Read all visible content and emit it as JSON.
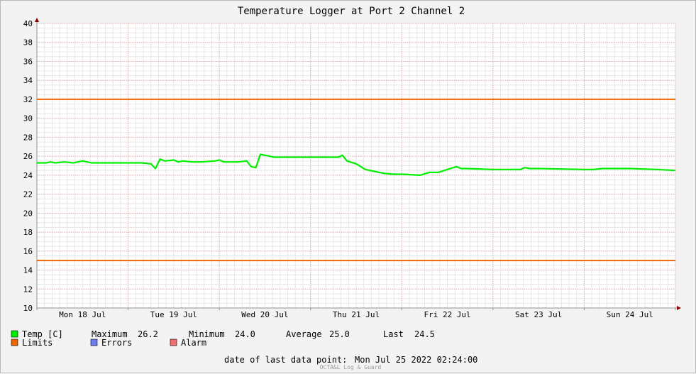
{
  "chart_data": {
    "type": "line",
    "title": "Temperature Logger at Port 2 Channel 2",
    "xlabel": "",
    "ylabel": "",
    "ylim": [
      10,
      40
    ],
    "xlim": [
      0,
      7
    ],
    "y_ticks": [
      10,
      12,
      14,
      16,
      18,
      20,
      22,
      24,
      26,
      28,
      30,
      32,
      34,
      36,
      38,
      40
    ],
    "x_tick_labels": [
      "Mon 18 Jul",
      "Tue 19 Jul",
      "Wed 20 Jul",
      "Thu 21 Jul",
      "Fri 22 Jul",
      "Sat 23 Jul",
      "Sun 24 Jul"
    ],
    "grid": true,
    "x_unit": "days from start of Mon 18 Jul",
    "series": [
      {
        "name": "Temp [C]",
        "color": "#00ee00",
        "x": [
          0,
          0.1,
          0.15,
          0.2,
          0.3,
          0.4,
          0.5,
          0.55,
          0.6,
          0.8,
          1.0,
          1.15,
          1.25,
          1.3,
          1.35,
          1.4,
          1.5,
          1.55,
          1.6,
          1.7,
          1.8,
          1.95,
          2.0,
          2.05,
          2.2,
          2.3,
          2.35,
          2.4,
          2.45,
          2.5,
          2.55,
          2.6,
          3.3,
          3.35,
          3.4,
          3.5,
          3.6,
          3.7,
          3.8,
          3.9,
          4.0,
          4.2,
          4.3,
          4.4,
          4.5,
          4.6,
          4.65,
          4.7,
          5.0,
          5.3,
          5.35,
          5.4,
          5.5,
          6.0,
          6.1,
          6.2,
          6.5,
          6.8,
          7.0
        ],
        "values": [
          25.3,
          25.3,
          25.4,
          25.3,
          25.4,
          25.3,
          25.5,
          25.4,
          25.3,
          25.3,
          25.3,
          25.3,
          25.2,
          24.7,
          25.7,
          25.5,
          25.6,
          25.4,
          25.5,
          25.4,
          25.4,
          25.5,
          25.6,
          25.4,
          25.4,
          25.5,
          24.9,
          24.8,
          26.2,
          26.1,
          26.0,
          25.9,
          25.9,
          26.1,
          25.5,
          25.2,
          24.6,
          24.4,
          24.2,
          24.1,
          24.1,
          24.0,
          24.3,
          24.3,
          24.6,
          24.9,
          24.7,
          24.7,
          24.6,
          24.6,
          24.8,
          24.7,
          24.7,
          24.6,
          24.6,
          24.7,
          24.7,
          24.6,
          24.5
        ]
      },
      {
        "name": "Limits",
        "color": "#ee6600",
        "lines": [
          32,
          15
        ]
      },
      {
        "name": "Errors",
        "color": "#6b7cf0"
      },
      {
        "name": "Alarm",
        "color": "#f07070"
      }
    ],
    "stats": {
      "maximum_label": "Maximum",
      "maximum": "26.2",
      "minimum_label": "Minimum",
      "minimum": "24.0",
      "average_label": "Average",
      "average": "25.0",
      "last_label": "Last",
      "last": "24.5"
    },
    "footer": {
      "label": "date of last data point:",
      "value": "Mon Jul 25 2022 02:24:00"
    },
    "credit": "OCTA&L Log & Guard"
  }
}
